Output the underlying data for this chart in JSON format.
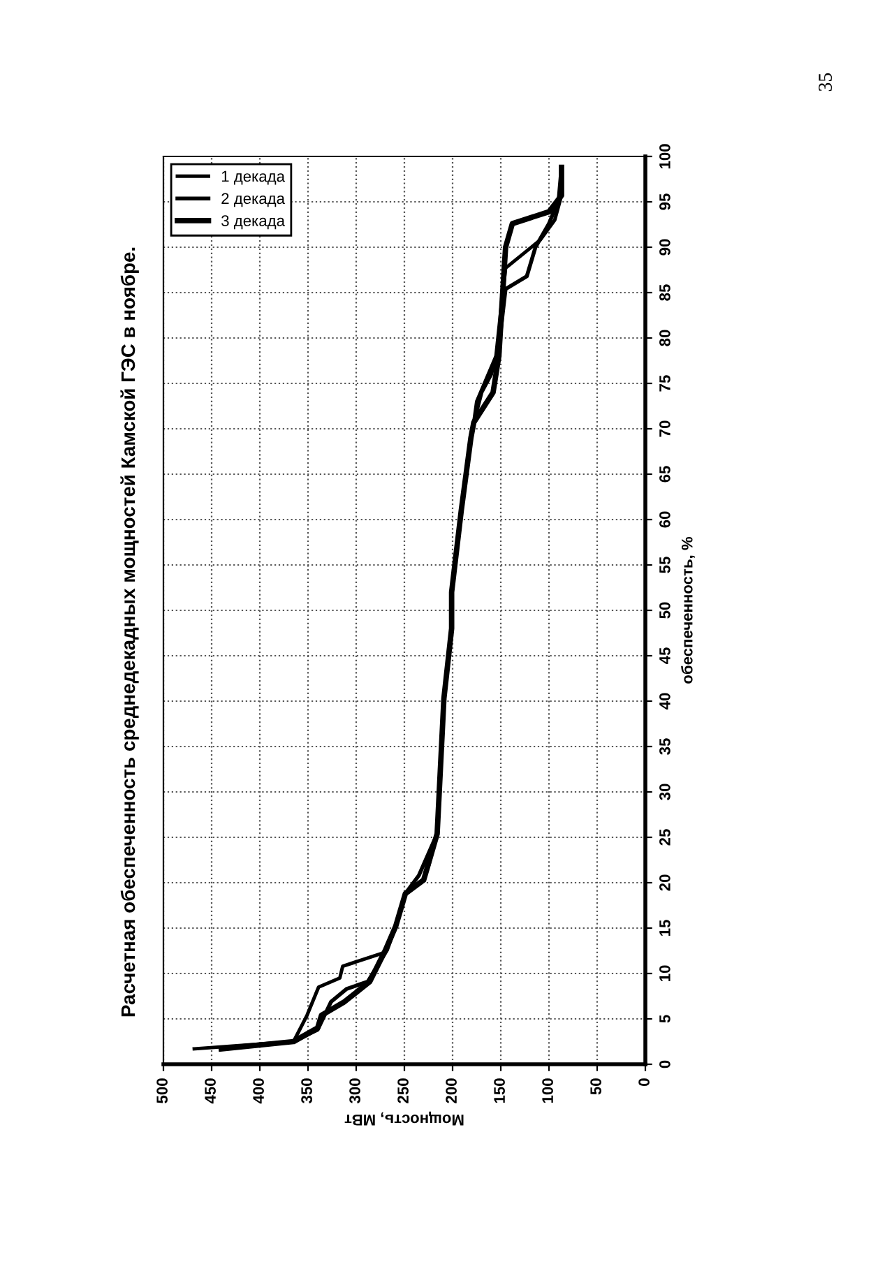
{
  "chart_data": {
    "type": "line",
    "title": "Расчетная обеспеченность среднедекадных мощностей Камской ГЭС в ноябре.",
    "xlabel": "Мощность, МВт",
    "ylabel": "обеспеченность, %",
    "xlim": [
      500,
      0
    ],
    "xticks": [
      500,
      450,
      400,
      350,
      300,
      250,
      200,
      150,
      100,
      50,
      0
    ],
    "ylim": [
      0,
      100
    ],
    "yticks": [
      0,
      5,
      10,
      15,
      20,
      25,
      30,
      35,
      40,
      45,
      50,
      55,
      60,
      65,
      70,
      75,
      80,
      85,
      90,
      95,
      100
    ],
    "grid": true,
    "legend": "top left",
    "line_style": "solid",
    "marker": "none",
    "annotations": [
      "35"
    ],
    "series": [
      {
        "name": "1 декада",
        "color": "#000000",
        "values": [
          1.7,
          2.5,
          5.4,
          8.5,
          9.5,
          10.8,
          12.3,
          15.2,
          18.8,
          20.3,
          21.8,
          25.4,
          40.3,
          48,
          52,
          61,
          69,
          70.7,
          73,
          75.5,
          78,
          85,
          87.7,
          90.8,
          93,
          95.7,
          98.8
        ],
        "x": [
          468,
          365,
          351,
          339,
          317,
          314,
          271,
          259,
          249,
          230,
          225,
          216,
          209,
          201,
          201,
          191,
          181,
          178,
          175,
          165,
          155,
          148,
          145,
          109,
          94,
          87,
          87
        ]
      },
      {
        "name": "2 декада",
        "color": "#000000",
        "values": [
          1.7,
          2.5,
          3.8,
          6.9,
          8.3,
          9.1,
          12.6,
          15.2,
          18.8,
          20.8,
          25.4,
          40.3,
          48,
          52,
          61,
          69,
          70.7,
          74,
          76,
          79,
          85.4,
          86.8,
          90,
          92.6,
          95.2,
          98.8
        ],
        "x": [
          437,
          365,
          340,
          326,
          310,
          288,
          268,
          259,
          249,
          235,
          216,
          209,
          201,
          201,
          191,
          181,
          178,
          170,
          160,
          152,
          145,
          123,
          114,
          100,
          90,
          87
        ]
      },
      {
        "name": "3 декада",
        "color": "#000000",
        "values": [
          1.7,
          2.5,
          4,
          5.4,
          6.9,
          9.1,
          12.5,
          15.2,
          18.8,
          20.3,
          25.4,
          40.3,
          48,
          52,
          61,
          69,
          70.7,
          74,
          78,
          85,
          90,
          92.6,
          93.9,
          95.7,
          98.8
        ],
        "x": [
          440,
          365,
          340,
          336,
          312,
          286,
          270,
          259,
          249,
          230,
          216,
          209,
          201,
          201,
          191,
          181,
          178,
          158,
          152,
          148,
          145,
          138,
          100,
          87,
          87
        ]
      }
    ]
  }
}
